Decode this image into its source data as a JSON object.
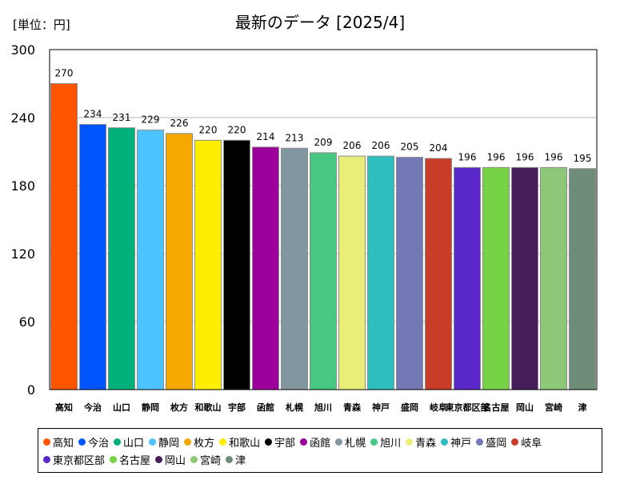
{
  "unit_label": "[単位：円]",
  "chart_data": {
    "type": "bar",
    "title": "最新のデータ [2025/4]",
    "xlabel": "",
    "ylabel": "",
    "ylim": [
      0,
      300
    ],
    "yticks": [
      0,
      60,
      120,
      180,
      240,
      300
    ],
    "grid": true,
    "legend_position": "bottom",
    "categories": [
      "高知",
      "今治",
      "山口",
      "静岡",
      "枚方",
      "和歌山",
      "宇部",
      "函館",
      "札幌",
      "旭川",
      "青森",
      "神戸",
      "盛岡",
      "岐阜",
      "東京都区部",
      "名古屋",
      "岡山",
      "宮崎",
      "津"
    ],
    "values": [
      270,
      234,
      231,
      229,
      226,
      220,
      220,
      214,
      213,
      209,
      206,
      206,
      205,
      204,
      196,
      196,
      196,
      196,
      195
    ],
    "colors": [
      "#ff5500",
      "#0055ff",
      "#00b07a",
      "#4dc3ff",
      "#f5a800",
      "#ffee00",
      "#000000",
      "#9b009b",
      "#8296a0",
      "#46c882",
      "#e8ee78",
      "#2fbebe",
      "#7478b4",
      "#c83c28",
      "#5a28c8",
      "#78d246",
      "#461e5a",
      "#8cc878",
      "#6e8c78"
    ]
  }
}
